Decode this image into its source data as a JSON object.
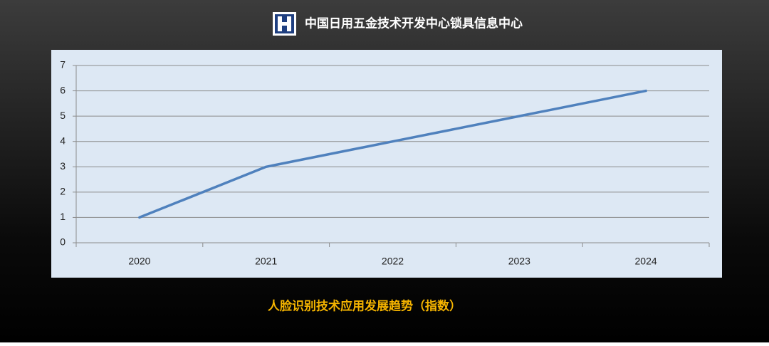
{
  "header": {
    "org": "中国日用五金技术开发中心锁具信息中心"
  },
  "chart_data": {
    "type": "line",
    "title": "人脸识别技术应用发展趋势（指数）",
    "categories": [
      "2020",
      "2021",
      "2022",
      "2023",
      "2024"
    ],
    "values": [
      1,
      3,
      4,
      5,
      6
    ],
    "color": "#4f81bd",
    "ylim": [
      0,
      7
    ],
    "yticks": [
      0,
      1,
      2,
      3,
      4,
      5,
      6,
      7
    ],
    "grid": true
  }
}
